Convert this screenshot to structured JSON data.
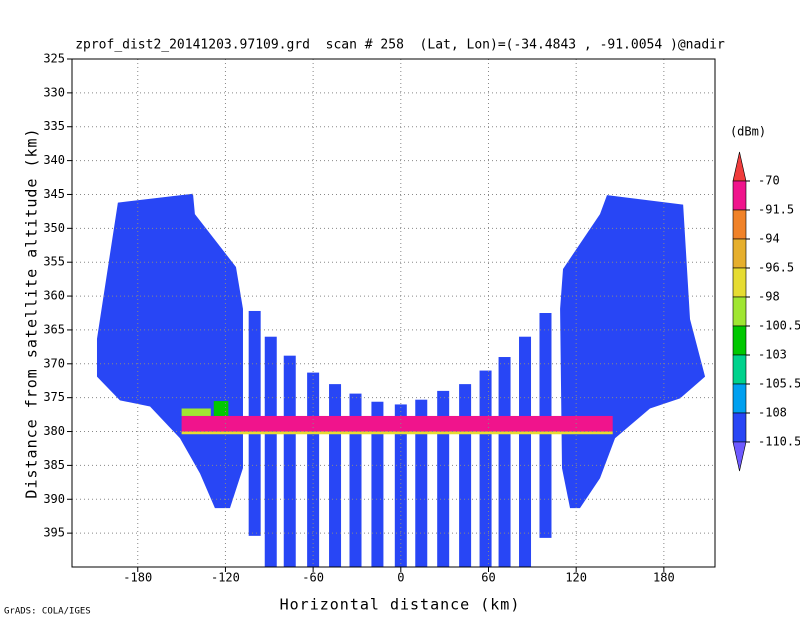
{
  "chart_data": {
    "type": "profile",
    "title": "zprof_dist2_20141203.97109.grd  scan # 258  (Lat, Lon)=(-34.4843 , -91.0054 )@nadir",
    "xlabel": "Horizontal distance (km)",
    "ylabel": "Distance from satellite altitude (km)",
    "footer": "GrADS: COLA/IGES",
    "xlim": [
      -225,
      215
    ],
    "ylim": [
      325,
      400
    ],
    "y_inverted": true,
    "xticks": [
      -180,
      -120,
      -60,
      0,
      60,
      120,
      180
    ],
    "yticks": [
      325,
      330,
      335,
      340,
      345,
      350,
      355,
      360,
      365,
      370,
      375,
      380,
      385,
      390,
      395
    ],
    "grid": true,
    "colorbar": {
      "unit": "(dBm)",
      "levels": [
        -70,
        -91.5,
        -94,
        -96.5,
        -98,
        -100.5,
        -103,
        -105.5,
        -108,
        -110.5
      ],
      "colors": [
        "#f03c3c",
        "#f0148c",
        "#f08228",
        "#e6af2d",
        "#e6dc32",
        "#a0e632",
        "#00c800",
        "#00d28c",
        "#00a0f0",
        "#2846f5",
        "#6e5aff"
      ]
    },
    "stripes": {
      "value": -109,
      "x": [
        -100,
        -89,
        -76,
        -60,
        -45,
        -31,
        -16,
        0,
        14,
        29,
        44,
        58,
        71,
        85,
        99
      ],
      "top": [
        362.2,
        366,
        368.8,
        371.3,
        373,
        374.4,
        375.6,
        376,
        375.3,
        374,
        373,
        371,
        369,
        366,
        362.5
      ],
      "bottom": [
        395.4,
        400,
        400,
        400,
        400,
        400,
        400,
        400,
        400,
        400,
        400,
        400,
        400,
        400,
        395.7
      ]
    },
    "wings": [
      {
        "value": -109,
        "x": [
          -193.6,
          -142.2,
          -140.9,
          -112.8,
          -108,
          -108,
          -116.9,
          -127.2,
          -137.4,
          -151.1,
          -171.6,
          -192.2,
          -207.9,
          -207.9
        ],
        "y": [
          346.2,
          344.9,
          347.9,
          355.7,
          361.9,
          385.4,
          391.3,
          391.3,
          386.2,
          381,
          376.3,
          375.4,
          371.9,
          366.3
        ]
      },
      {
        "value": -109,
        "x": [
          141.1,
          193.2,
          197.9,
          208.2,
          191.1,
          170.5,
          146.6,
          136.3,
          122.6,
          115.8,
          110.3,
          109,
          111,
          136.3
        ],
        "y": [
          345.1,
          346.5,
          363.4,
          371.9,
          375.1,
          376.6,
          381,
          386.9,
          391.3,
          391.3,
          385.4,
          361.9,
          356,
          347.9
        ]
      }
    ],
    "bands": [
      {
        "x": [
          -150,
          145
        ],
        "y": [
          377.7,
          380
        ],
        "value": -85
      },
      {
        "x": [
          -150,
          145
        ],
        "y": [
          380,
          380.4
        ],
        "value": -97
      },
      {
        "x": [
          -128,
          -118
        ],
        "y": [
          375.5,
          377.7
        ],
        "value": -102
      },
      {
        "x": [
          -150,
          -130
        ],
        "y": [
          376.6,
          377.7
        ],
        "value": -99
      }
    ]
  }
}
